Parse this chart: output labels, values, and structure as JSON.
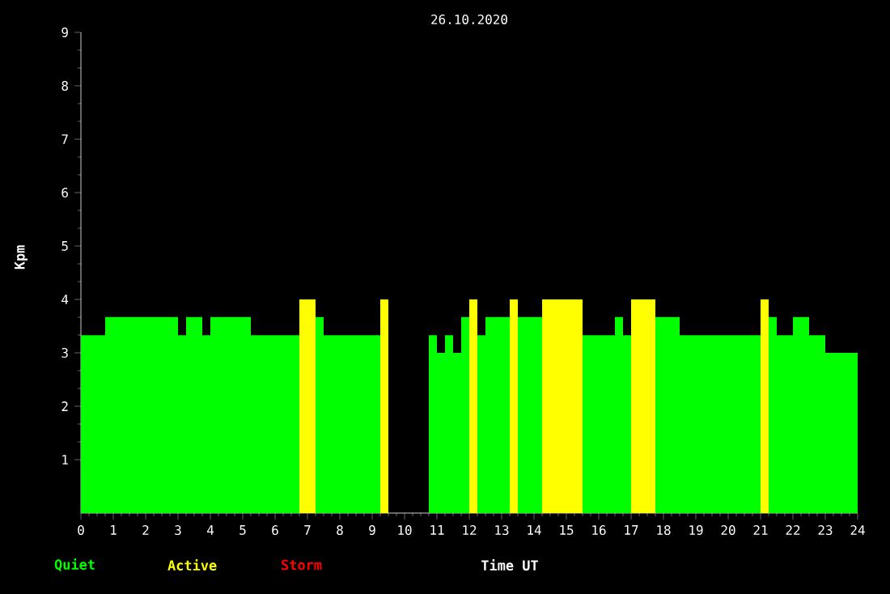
{
  "chart_data": {
    "type": "area",
    "title": "26.10.2020",
    "xlabel": "Time UT",
    "ylabel": "Kpm",
    "series": [
      {
        "name": "Quiet",
        "color": "#00ff00",
        "x": [
          0,
          0.75,
          0.75,
          3,
          3,
          3.25,
          3.25,
          3.75,
          3.75,
          4,
          4,
          5.25,
          5.25,
          6.75,
          6.75,
          7.25,
          7.25,
          7.5,
          7.5,
          9.25,
          9.25,
          10.75,
          10.75,
          11,
          11,
          11.25,
          11.25,
          11.5,
          11.5,
          11.75,
          11.75,
          12,
          12,
          12.25,
          12.25,
          12.5,
          12.5,
          13.25,
          13.25,
          13.5,
          13.5,
          14.25,
          14.25,
          15.5,
          15.5,
          16.5,
          16.5,
          16.75,
          16.75,
          17,
          17,
          17.75,
          17.75,
          18.5,
          18.5,
          21,
          21,
          21.25,
          21.25,
          21.5,
          21.5,
          22,
          22,
          22.5,
          22.5,
          23,
          23,
          24
        ],
        "values": [
          3.33,
          3.33,
          3.67,
          3.67,
          3.33,
          3.33,
          3.67,
          3.67,
          3.33,
          3.33,
          3.67,
          3.67,
          3.33,
          3.33,
          0,
          0,
          3.67,
          3.67,
          3.33,
          3.33,
          0,
          0,
          3.33,
          3.33,
          3.0,
          3.0,
          3.33,
          3.33,
          3.0,
          3.0,
          3.67,
          3.67,
          0,
          0,
          3.33,
          3.33,
          3.67,
          3.67,
          0,
          0,
          3.67,
          3.67,
          0,
          0,
          3.33,
          3.33,
          3.67,
          3.67,
          3.33,
          3.33,
          0,
          0,
          3.67,
          3.67,
          3.33,
          3.33,
          0,
          0,
          3.67,
          3.67,
          3.33,
          3.33,
          3.67,
          3.67,
          3.33,
          3.33,
          3.0,
          3.0
        ]
      },
      {
        "name": "Active",
        "color": "#ffff00",
        "x": [
          6.75,
          6.75,
          7.25,
          7.25,
          9.25,
          9.25,
          9.5,
          9.5,
          12,
          12,
          12.25,
          12.25,
          13.25,
          13.25,
          13.5,
          13.5,
          14.25,
          14.25,
          15.5,
          15.5,
          17,
          17,
          17.75,
          17.75,
          21,
          21,
          21.25,
          21.25
        ],
        "values": [
          0,
          4,
          4,
          0,
          0,
          4,
          4,
          0,
          0,
          4,
          4,
          0,
          0,
          4,
          4,
          0,
          0,
          4,
          4,
          0,
          0,
          4,
          4,
          0,
          0,
          4,
          4,
          0
        ]
      },
      {
        "name": "Storm",
        "color": "#ff0000"
      }
    ],
    "xlim": [
      0,
      24
    ],
    "ylim": [
      0,
      9
    ],
    "xticks": [
      0,
      1,
      2,
      3,
      4,
      5,
      6,
      7,
      8,
      9,
      10,
      11,
      12,
      13,
      14,
      15,
      16,
      17,
      18,
      19,
      20,
      21,
      22,
      23,
      24
    ],
    "yticks": [
      1,
      2,
      3,
      4,
      5,
      6,
      7,
      8,
      9
    ],
    "legend": "bottom left"
  }
}
